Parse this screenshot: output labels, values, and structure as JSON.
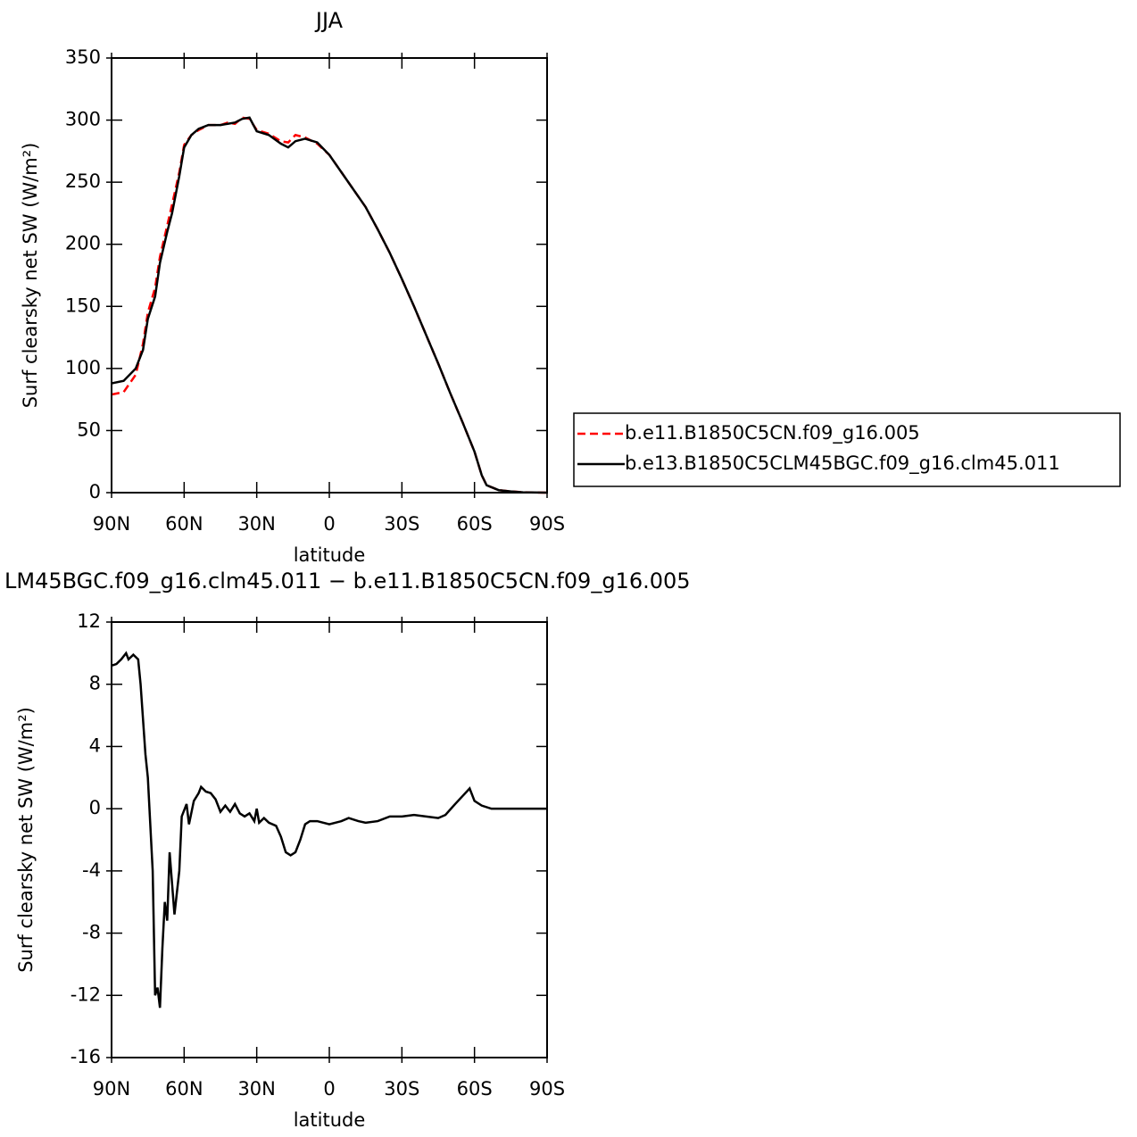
{
  "chart_data": [
    {
      "type": "line",
      "title": "JJA",
      "xlabel": "latitude",
      "ylabel": "Surf clearsky net SW (W/m²)",
      "xlim": [
        90,
        -90
      ],
      "xticks": [
        {
          "value": 90,
          "label": "90N"
        },
        {
          "value": 60,
          "label": "60N"
        },
        {
          "value": 30,
          "label": "30N"
        },
        0,
        {
          "value": -30,
          "label": "30S"
        },
        {
          "value": -60,
          "label": "60S"
        },
        {
          "value": -90,
          "label": "90S"
        }
      ],
      "ylim": [
        0,
        350
      ],
      "yticks": [
        0,
        50,
        100,
        150,
        200,
        250,
        300,
        350
      ],
      "x": [
        90,
        85,
        80,
        77,
        75,
        72,
        70,
        67,
        65,
        62,
        60,
        57,
        54,
        50,
        45,
        42,
        39,
        36,
        33,
        30,
        25,
        20,
        17,
        14,
        10,
        5,
        0,
        -5,
        -10,
        -15,
        -20,
        -25,
        -30,
        -35,
        -40,
        -45,
        -50,
        -55,
        -60,
        -63,
        -65,
        -70,
        -75,
        -80,
        -90
      ],
      "series": [
        {
          "name": "b.e11.B1850C5CN.f09_g16.005",
          "color": "#ff0000",
          "dashed": true,
          "values": [
            79,
            81,
            95,
            120,
            145,
            165,
            190,
            215,
            232,
            258,
            280,
            288,
            292,
            296,
            296,
            298,
            297,
            302,
            301,
            292,
            289,
            283,
            282,
            288,
            286,
            281,
            272,
            258,
            244,
            230,
            212,
            193,
            172,
            150,
            127,
            104,
            80,
            57,
            33,
            14,
            6,
            2,
            1,
            0.3,
            0
          ]
        },
        {
          "name": "b.e13.B1850C5CLM45BGC.f09_g16.clm45.011",
          "color": "#000000",
          "dashed": false,
          "values": [
            88,
            90,
            100,
            115,
            140,
            158,
            185,
            210,
            225,
            255,
            278,
            288,
            293,
            296,
            296,
            297,
            298,
            301,
            302,
            291,
            288,
            281,
            278,
            283,
            285,
            282,
            272,
            258,
            244,
            230,
            212,
            193,
            172,
            150,
            127,
            104,
            80,
            57,
            33,
            14,
            6,
            2,
            1,
            0.3,
            0
          ]
        }
      ]
    },
    {
      "type": "line",
      "title": "LM45BGC.f09_g16.clm45.011 − b.e11.B1850C5CN.f09_g16.005",
      "xlabel": "latitude",
      "ylabel": "Surf clearsky net SW (W/m²)",
      "xlim": [
        90,
        -90
      ],
      "xticks": [
        {
          "value": 90,
          "label": "90N"
        },
        {
          "value": 60,
          "label": "60N"
        },
        {
          "value": 30,
          "label": "30N"
        },
        0,
        {
          "value": -30,
          "label": "30S"
        },
        {
          "value": -60,
          "label": "60S"
        },
        {
          "value": -90,
          "label": "90S"
        }
      ],
      "ylim": [
        -16,
        12
      ],
      "yticks": [
        -16,
        -12,
        -8,
        -4,
        0,
        4,
        8,
        12
      ],
      "x": [
        90,
        88,
        86,
        84,
        83,
        81,
        79,
        78,
        76,
        75,
        73,
        72,
        71,
        70,
        69,
        68,
        67,
        66,
        64,
        62,
        61,
        59,
        58,
        56,
        54,
        53,
        51,
        49,
        47,
        45,
        43,
        41,
        39,
        37,
        35,
        33,
        31,
        30,
        29,
        27,
        25,
        22,
        20,
        18,
        16,
        14,
        12,
        10,
        8,
        5,
        0,
        -5,
        -8,
        -12,
        -15,
        -20,
        -25,
        -30,
        -35,
        -40,
        -45,
        -48,
        -52,
        -55,
        -58,
        -60,
        -63,
        -67,
        -90
      ],
      "series": [
        {
          "color": "#000000",
          "dashed": false,
          "values": [
            9.2,
            9.3,
            9.6,
            10,
            9.6,
            9.9,
            9.6,
            8,
            3.5,
            2,
            -4,
            -12,
            -11.5,
            -12.8,
            -9,
            -6,
            -7.2,
            -2.8,
            -6.8,
            -4,
            -0.5,
            0.3,
            -1,
            0.5,
            1,
            1.4,
            1.1,
            1,
            0.6,
            -0.2,
            0.2,
            -0.2,
            0.3,
            -0.3,
            -0.5,
            -0.3,
            -0.8,
            0,
            -0.9,
            -0.6,
            -0.9,
            -1.1,
            -1.8,
            -2.8,
            -3,
            -2.8,
            -2,
            -1,
            -0.8,
            -0.8,
            -1,
            -0.8,
            -0.6,
            -0.8,
            -0.9,
            -0.8,
            -0.5,
            -0.5,
            -0.4,
            -0.5,
            -0.6,
            -0.4,
            0.3,
            0.8,
            1.3,
            0.5,
            0.2,
            0,
            0
          ]
        }
      ]
    }
  ]
}
